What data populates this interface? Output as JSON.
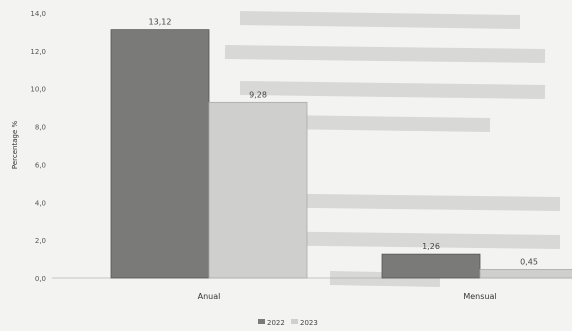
{
  "chart_data": {
    "type": "bar",
    "title": "",
    "xlabel": "",
    "ylabel": "Percentage %",
    "categories": [
      "Anual",
      "Mensual"
    ],
    "series": [
      {
        "name": "2022",
        "values": [
          13.12,
          1.26
        ],
        "labels": [
          "13,12",
          "1,26"
        ]
      },
      {
        "name": "2023",
        "values": [
          9.28,
          0.45
        ],
        "labels": [
          "9,28",
          "0,45"
        ]
      }
    ],
    "ylim": [
      0,
      14
    ],
    "yticks": [
      0,
      2,
      4,
      6,
      8,
      10,
      12,
      14
    ],
    "ytick_labels": [
      "0,0",
      "2,0",
      "4,0",
      "6,0",
      "8,0",
      "10,0",
      "12,0",
      "14,0"
    ],
    "legend_position": "bottom",
    "grid": false,
    "colors": {
      "2022": "#7a7a78",
      "2023": "#cfcfcd"
    }
  }
}
